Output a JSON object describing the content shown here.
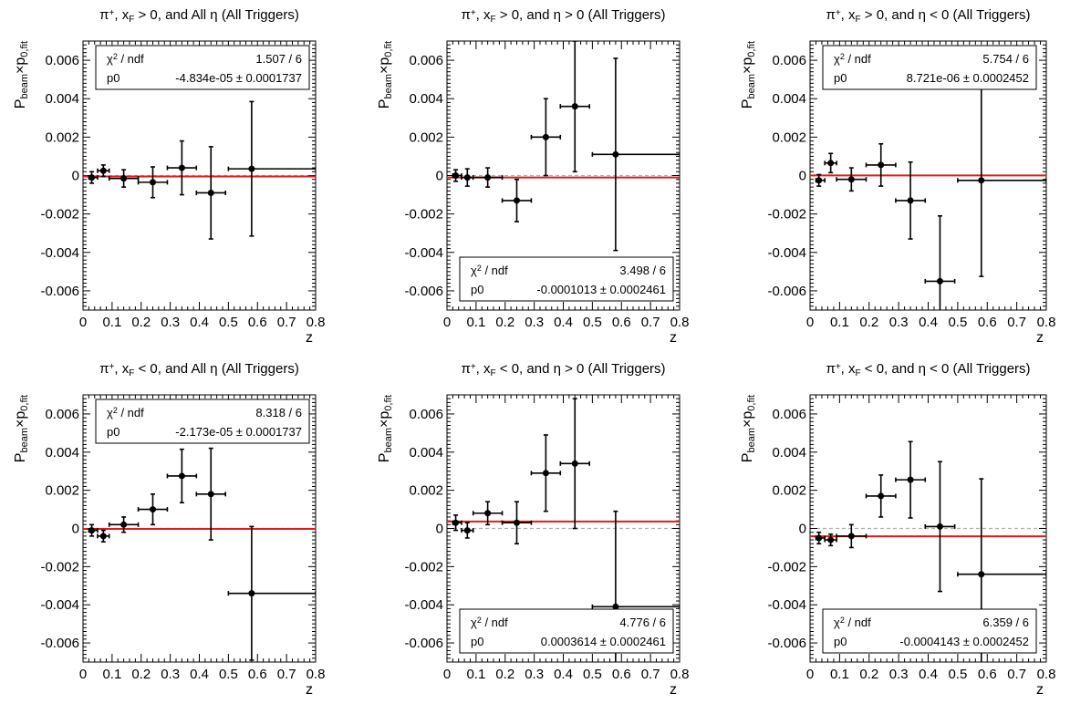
{
  "chart_data": [
    {
      "type": "scatter",
      "title": "π⁺, x_F > 0, and All η (All Triggers)",
      "title_parts": [
        "π",
        "+",
        ", x",
        "F",
        " > 0, and All η (All Triggers)"
      ],
      "xlabel": "z",
      "ylabel": [
        "P",
        "beam",
        "×p",
        "0,fit"
      ],
      "xlim": [
        0,
        0.8
      ],
      "ylim": [
        -0.007,
        0.007
      ],
      "xticks": [
        "0",
        "0.1",
        "0.2",
        "0.3",
        "0.4",
        "0.5",
        "0.6",
        "0.7",
        "0.8"
      ],
      "yticks": [
        "-0.006",
        "-0.004",
        "-0.002",
        "0",
        "0.002",
        "0.004",
        "0.006"
      ],
      "legend_position": "top",
      "fit": {
        "chi2_label": "χ² / ndf",
        "chi2_value": "1.507 / 6",
        "p0_label": "p0",
        "p0_value": "-4.834e-05 ± 0.0001737",
        "p0": -4.834e-05
      },
      "points": [
        {
          "x": 0.03,
          "xerr": [
            0.01,
            0.02
          ],
          "y": -0.0001,
          "yerr": 0.0003
        },
        {
          "x": 0.07,
          "xerr": [
            0.02,
            0.02
          ],
          "y": 0.00025,
          "yerr": 0.0003
        },
        {
          "x": 0.14,
          "xerr": [
            0.05,
            0.05
          ],
          "y": -0.00015,
          "yerr": 0.00045
        },
        {
          "x": 0.24,
          "xerr": [
            0.05,
            0.05
          ],
          "y": -0.00035,
          "yerr": 0.0008
        },
        {
          "x": 0.34,
          "xerr": [
            0.05,
            0.05
          ],
          "y": 0.0004,
          "yerr": 0.0014
        },
        {
          "x": 0.44,
          "xerr": [
            0.05,
            0.05
          ],
          "y": -0.0009,
          "yerr": 0.0024
        },
        {
          "x": 0.58,
          "xerr": [
            0.08,
            0.22
          ],
          "y": 0.00035,
          "yerr": 0.0035
        }
      ]
    },
    {
      "type": "scatter",
      "title": "π⁺, x_F > 0, and η > 0 (All Triggers)",
      "title_parts": [
        "π",
        "+",
        ", x",
        "F",
        " > 0, and η > 0 (All Triggers)"
      ],
      "xlabel": "z",
      "ylabel": [
        "P",
        "beam",
        "×p",
        "0,fit"
      ],
      "xlim": [
        0,
        0.8
      ],
      "ylim": [
        -0.007,
        0.007
      ],
      "xticks": [
        "0",
        "0.1",
        "0.2",
        "0.3",
        "0.4",
        "0.5",
        "0.6",
        "0.7",
        "0.8"
      ],
      "yticks": [
        "-0.006",
        "-0.004",
        "-0.002",
        "0",
        "0.002",
        "0.004",
        "0.006"
      ],
      "legend_position": "bottom",
      "fit": {
        "chi2_label": "χ² / ndf",
        "chi2_value": "3.498 / 6",
        "p0_label": "p0",
        "p0_value": "-0.0001013 ± 0.0002461",
        "p0": -0.0001013
      },
      "points": [
        {
          "x": 0.03,
          "xerr": [
            0.01,
            0.02
          ],
          "y": 0.0,
          "yerr": 0.0003
        },
        {
          "x": 0.07,
          "xerr": [
            0.02,
            0.02
          ],
          "y": -0.0001,
          "yerr": 0.00045
        },
        {
          "x": 0.14,
          "xerr": [
            0.05,
            0.05
          ],
          "y": -0.0001,
          "yerr": 0.0005
        },
        {
          "x": 0.24,
          "xerr": [
            0.05,
            0.05
          ],
          "y": -0.0013,
          "yerr": 0.0011
        },
        {
          "x": 0.34,
          "xerr": [
            0.05,
            0.05
          ],
          "y": 0.002,
          "yerr": 0.002
        },
        {
          "x": 0.44,
          "xerr": [
            0.05,
            0.05
          ],
          "y": 0.0036,
          "yerr": 0.0034
        },
        {
          "x": 0.58,
          "xerr": [
            0.08,
            0.22
          ],
          "y": 0.0011,
          "yerr": 0.005
        }
      ]
    },
    {
      "type": "scatter",
      "title": "π⁺, x_F > 0, and η < 0 (All Triggers)",
      "title_parts": [
        "π",
        "+",
        ", x",
        "F",
        " > 0, and η < 0 (All Triggers)"
      ],
      "xlabel": "z",
      "ylabel": [
        "P",
        "beam",
        "×p",
        "0,fit"
      ],
      "xlim": [
        0,
        0.8
      ],
      "ylim": [
        -0.007,
        0.007
      ],
      "xticks": [
        "0",
        "0.1",
        "0.2",
        "0.3",
        "0.4",
        "0.5",
        "0.6",
        "0.7",
        "0.8"
      ],
      "yticks": [
        "-0.006",
        "-0.004",
        "-0.002",
        "0",
        "0.002",
        "0.004",
        "0.006"
      ],
      "legend_position": "top",
      "fit": {
        "chi2_label": "χ² / ndf",
        "chi2_value": "5.754 / 6",
        "p0_label": "p0",
        "p0_value": "8.721e-06 ± 0.0002452",
        "p0": 8.721e-06
      },
      "points": [
        {
          "x": 0.03,
          "xerr": [
            0.01,
            0.02
          ],
          "y": -0.00025,
          "yerr": 0.0003
        },
        {
          "x": 0.07,
          "xerr": [
            0.02,
            0.02
          ],
          "y": 0.00065,
          "yerr": 0.0005
        },
        {
          "x": 0.14,
          "xerr": [
            0.05,
            0.05
          ],
          "y": -0.0002,
          "yerr": 0.0006
        },
        {
          "x": 0.24,
          "xerr": [
            0.05,
            0.05
          ],
          "y": 0.00055,
          "yerr": 0.0011
        },
        {
          "x": 0.34,
          "xerr": [
            0.05,
            0.05
          ],
          "y": -0.0013,
          "yerr": 0.002
        },
        {
          "x": 0.44,
          "xerr": [
            0.05,
            0.05
          ],
          "y": -0.0055,
          "yerr": 0.0034
        },
        {
          "x": 0.58,
          "xerr": [
            0.08,
            0.22
          ],
          "y": -0.00025,
          "yerr": 0.005
        }
      ]
    },
    {
      "type": "scatter",
      "title": "π⁺, x_F < 0, and All η (All Triggers)",
      "title_parts": [
        "π",
        "+",
        ", x",
        "F",
        " < 0, and All η (All Triggers)"
      ],
      "xlabel": "z",
      "ylabel": [
        "P",
        "beam",
        "×p",
        "0,fit"
      ],
      "xlim": [
        0,
        0.8
      ],
      "ylim": [
        -0.007,
        0.007
      ],
      "xticks": [
        "0",
        "0.1",
        "0.2",
        "0.3",
        "0.4",
        "0.5",
        "0.6",
        "0.7",
        "0.8"
      ],
      "yticks": [
        "-0.006",
        "-0.004",
        "-0.002",
        "0",
        "0.002",
        "0.004",
        "0.006"
      ],
      "legend_position": "top",
      "fit": {
        "chi2_label": "χ² / ndf",
        "chi2_value": "8.318 / 6",
        "p0_label": "p0",
        "p0_value": "-2.173e-05 ± 0.0001737",
        "p0": -2.173e-05
      },
      "points": [
        {
          "x": 0.03,
          "xerr": [
            0.01,
            0.02
          ],
          "y": -0.0001,
          "yerr": 0.0003
        },
        {
          "x": 0.07,
          "xerr": [
            0.02,
            0.02
          ],
          "y": -0.0004,
          "yerr": 0.0003
        },
        {
          "x": 0.14,
          "xerr": [
            0.05,
            0.05
          ],
          "y": 0.0002,
          "yerr": 0.0004
        },
        {
          "x": 0.24,
          "xerr": [
            0.05,
            0.05
          ],
          "y": 0.001,
          "yerr": 0.0008
        },
        {
          "x": 0.34,
          "xerr": [
            0.05,
            0.05
          ],
          "y": 0.00275,
          "yerr": 0.0014
        },
        {
          "x": 0.44,
          "xerr": [
            0.05,
            0.05
          ],
          "y": 0.0018,
          "yerr": 0.0024
        },
        {
          "x": 0.58,
          "xerr": [
            0.08,
            0.22
          ],
          "y": -0.0034,
          "yerr": 0.0035
        }
      ]
    },
    {
      "type": "scatter",
      "title": "π⁺, x_F < 0, and η > 0 (All Triggers)",
      "title_parts": [
        "π",
        "+",
        ", x",
        "F",
        " < 0, and η > 0 (All Triggers)"
      ],
      "xlabel": "z",
      "ylabel": [
        "P",
        "beam",
        "×p",
        "0,fit"
      ],
      "xlim": [
        0,
        0.8
      ],
      "ylim": [
        -0.007,
        0.007
      ],
      "xticks": [
        "0",
        "0.1",
        "0.2",
        "0.3",
        "0.4",
        "0.5",
        "0.6",
        "0.7",
        "0.8"
      ],
      "yticks": [
        "-0.006",
        "-0.004",
        "-0.002",
        "0",
        "0.002",
        "0.004",
        "0.006"
      ],
      "legend_position": "bottom",
      "fit": {
        "chi2_label": "χ² / ndf",
        "chi2_value": "4.776 / 6",
        "p0_label": "p0",
        "p0_value": "0.0003614 ± 0.0002461",
        "p0": 0.0003614
      },
      "points": [
        {
          "x": 0.03,
          "xerr": [
            0.01,
            0.02
          ],
          "y": 0.0003,
          "yerr": 0.0004
        },
        {
          "x": 0.07,
          "xerr": [
            0.02,
            0.02
          ],
          "y": -0.0001,
          "yerr": 0.0004
        },
        {
          "x": 0.14,
          "xerr": [
            0.05,
            0.05
          ],
          "y": 0.0008,
          "yerr": 0.0006
        },
        {
          "x": 0.24,
          "xerr": [
            0.05,
            0.05
          ],
          "y": 0.0003,
          "yerr": 0.0011
        },
        {
          "x": 0.34,
          "xerr": [
            0.05,
            0.05
          ],
          "y": 0.0029,
          "yerr": 0.002
        },
        {
          "x": 0.44,
          "xerr": [
            0.05,
            0.05
          ],
          "y": 0.0034,
          "yerr": 0.0034
        },
        {
          "x": 0.58,
          "xerr": [
            0.08,
            0.22
          ],
          "y": -0.0041,
          "yerr": 0.005
        }
      ]
    },
    {
      "type": "scatter",
      "title": "π⁺, x_F < 0, and η < 0 (All Triggers)",
      "title_parts": [
        "π",
        "+",
        ", x",
        "F",
        " < 0, and η < 0 (All Triggers)"
      ],
      "xlabel": "z",
      "ylabel": [
        "P",
        "beam",
        "×p",
        "0,fit"
      ],
      "xlim": [
        0,
        0.8
      ],
      "ylim": [
        -0.007,
        0.007
      ],
      "xticks": [
        "0",
        "0.1",
        "0.2",
        "0.3",
        "0.4",
        "0.5",
        "0.6",
        "0.7",
        "0.8"
      ],
      "yticks": [
        "-0.006",
        "-0.004",
        "-0.002",
        "0",
        "0.002",
        "0.004",
        "0.006"
      ],
      "legend_position": "bottom",
      "fit": {
        "chi2_label": "χ² / ndf",
        "chi2_value": "6.359 / 6",
        "p0_label": "p0",
        "p0_value": "-0.0004143 ± 0.0002452",
        "p0": -0.0004143
      },
      "points": [
        {
          "x": 0.03,
          "xerr": [
            0.01,
            0.02
          ],
          "y": -0.0005,
          "yerr": 0.0003
        },
        {
          "x": 0.07,
          "xerr": [
            0.02,
            0.02
          ],
          "y": -0.0006,
          "yerr": 0.0003
        },
        {
          "x": 0.14,
          "xerr": [
            0.05,
            0.05
          ],
          "y": -0.0004,
          "yerr": 0.0006
        },
        {
          "x": 0.24,
          "xerr": [
            0.05,
            0.05
          ],
          "y": 0.0017,
          "yerr": 0.0011
        },
        {
          "x": 0.34,
          "xerr": [
            0.05,
            0.05
          ],
          "y": 0.00255,
          "yerr": 0.002
        },
        {
          "x": 0.44,
          "xerr": [
            0.05,
            0.05
          ],
          "y": 0.0001,
          "yerr": 0.0034
        },
        {
          "x": 0.58,
          "xerr": [
            0.08,
            0.22
          ],
          "y": -0.0024,
          "yerr": 0.005
        }
      ]
    }
  ],
  "colors": {
    "fit_line": "#e31a1c",
    "zero_line": "#b0b0b0",
    "marker": "#000000",
    "frame": "#000000"
  }
}
